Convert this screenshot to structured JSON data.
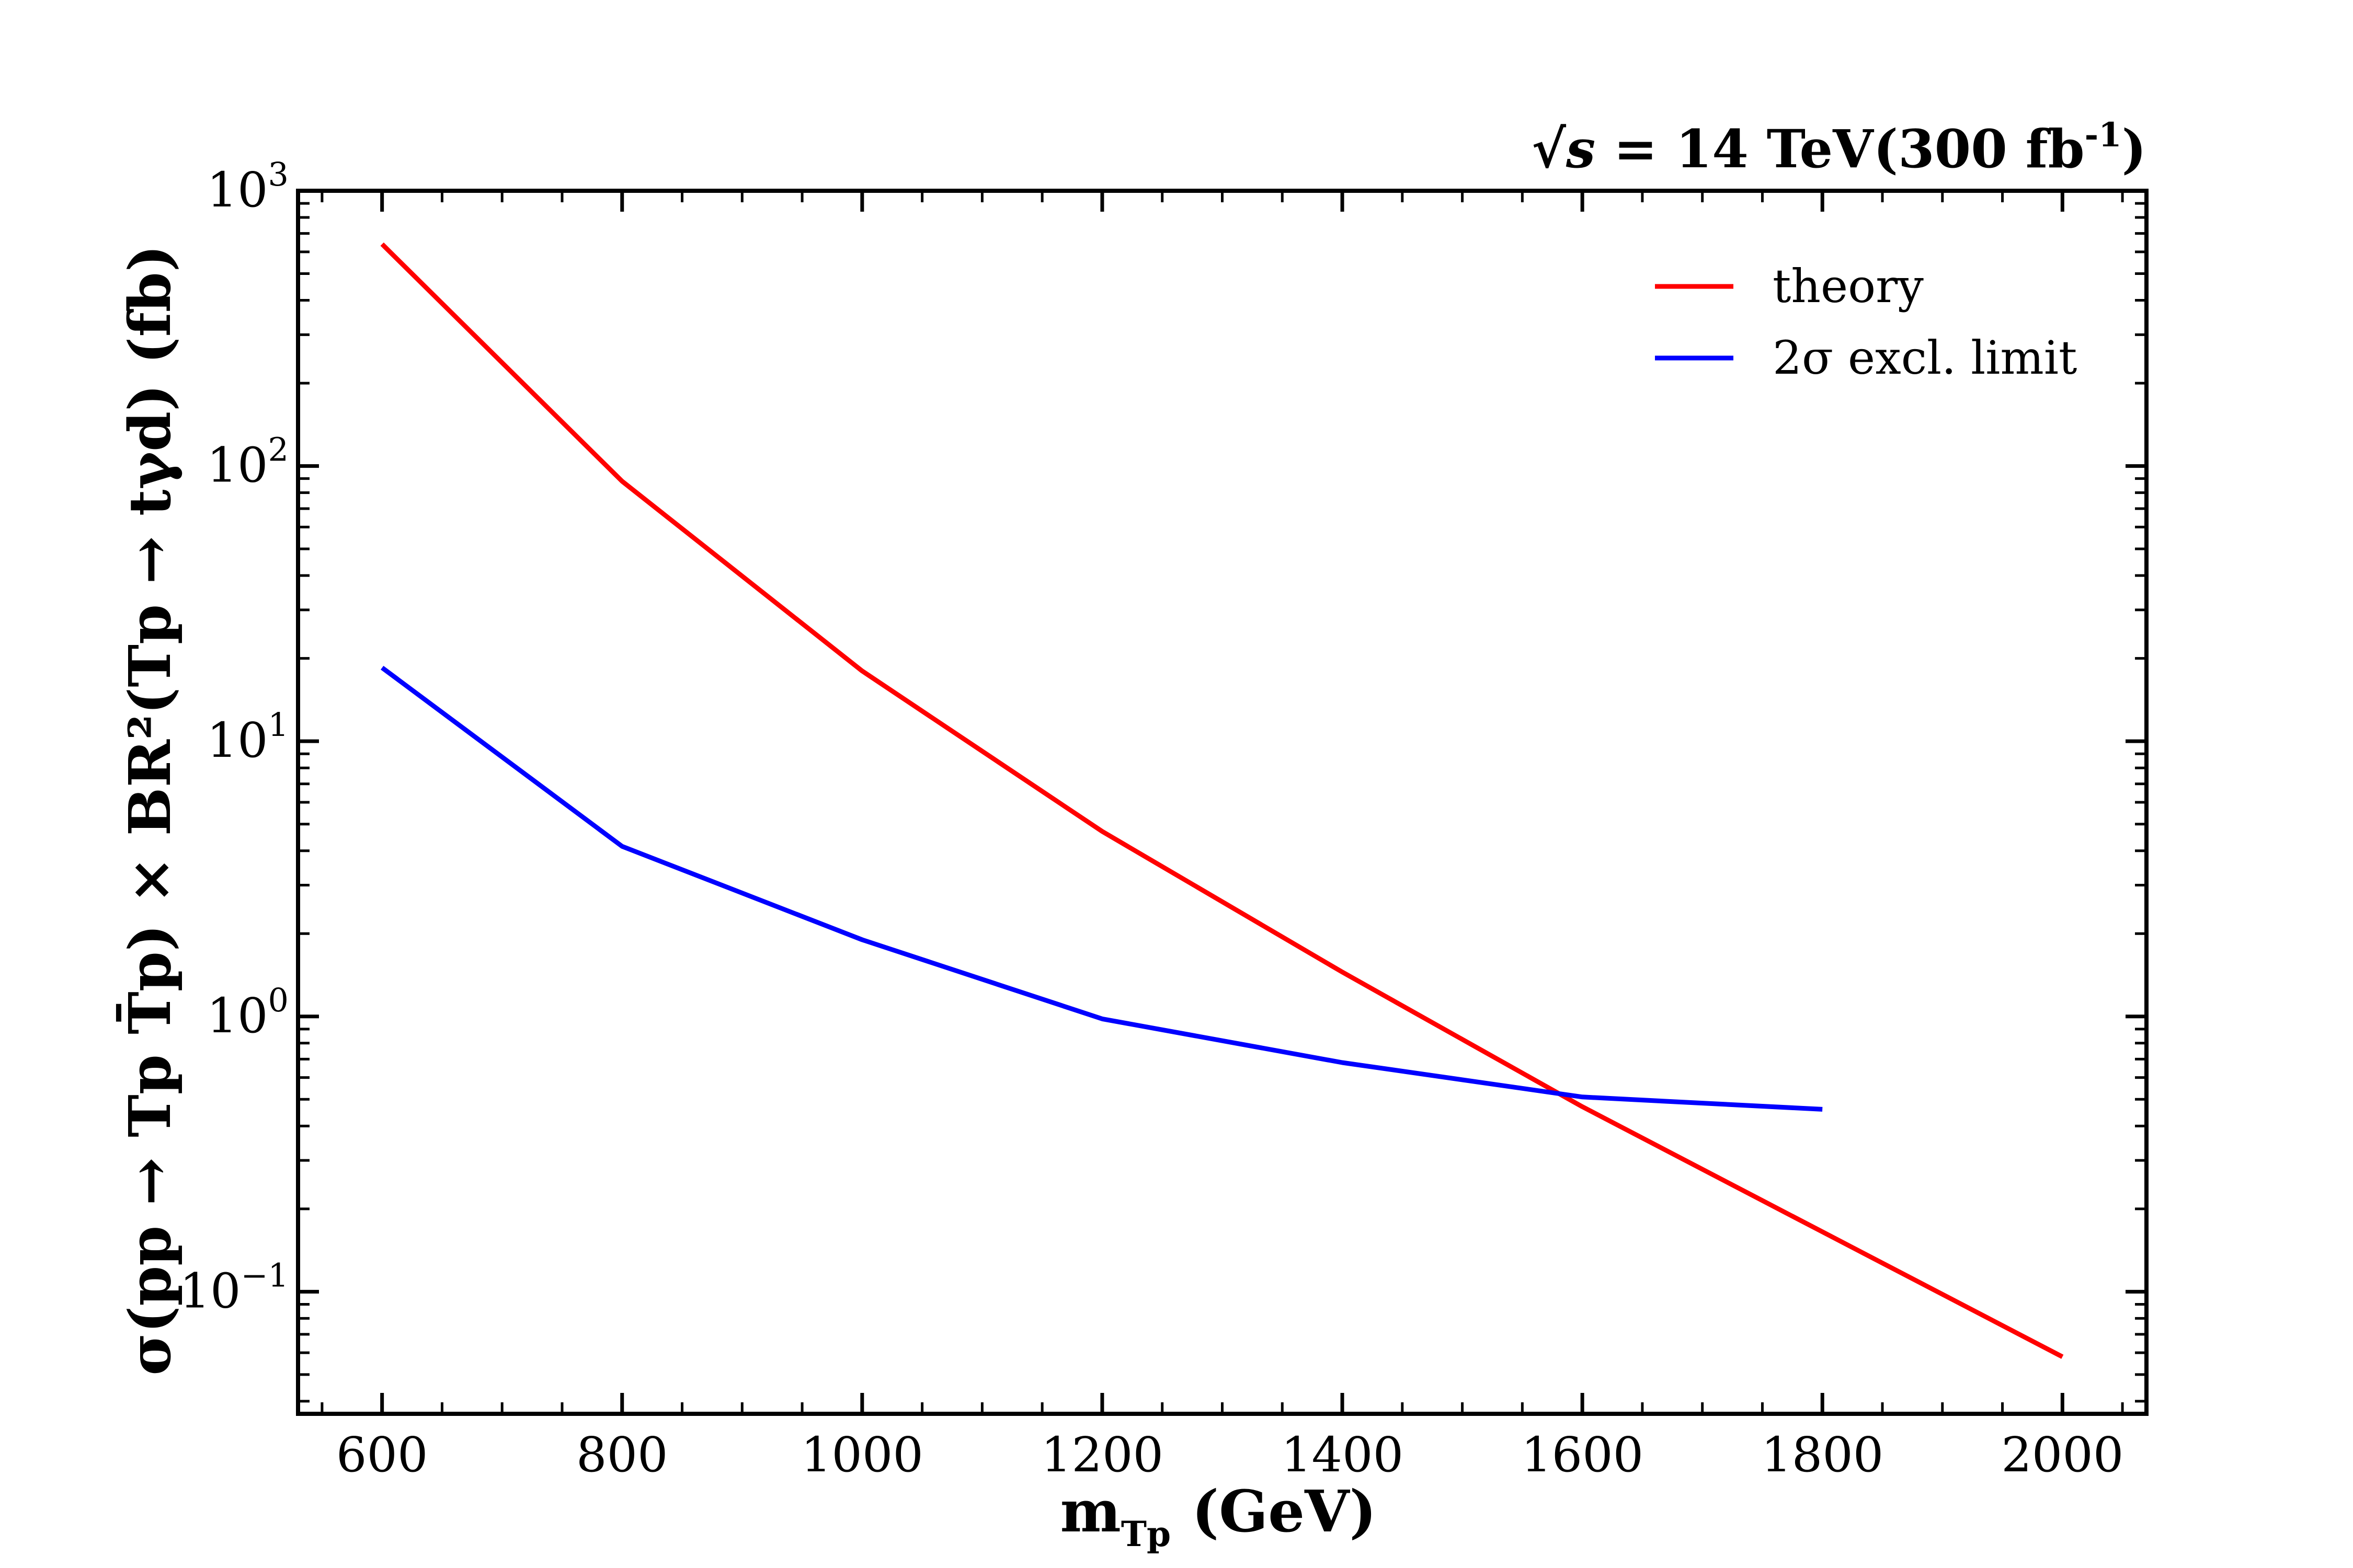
{
  "chart_data": {
    "type": "line",
    "title": "",
    "xlabel": "m",
    "xlabel_sub": "Tp",
    "xlabel_unit": "(GeV)",
    "ylabel": "σ(pp → Tp T̄p) × BR²(Tp → tγd) (fb)",
    "annotation": {
      "energy_lhs": "√s",
      "energy_text": " = 14 TeV(300 fb",
      "energy_sup": "-1",
      "energy_close": ")"
    },
    "xlim": [
      530,
      2070
    ],
    "ylim": [
      0.036,
      1000
    ],
    "yscale": "log",
    "x_ticks": [
      600,
      800,
      1000,
      1200,
      1400,
      1600,
      1800,
      2000
    ],
    "x_tick_labels": [
      "600",
      "800",
      "1000",
      "1200",
      "1400",
      "1600",
      "1800",
      "2000"
    ],
    "y_ticks": [
      {
        "value": 0.1,
        "base": "10",
        "exp": "−1"
      },
      {
        "value": 1,
        "base": "10",
        "exp": "0"
      },
      {
        "value": 10,
        "base": "10",
        "exp": "1"
      },
      {
        "value": 100,
        "base": "10",
        "exp": "2"
      },
      {
        "value": 1000,
        "base": "10",
        "exp": "3"
      }
    ],
    "grid": false,
    "legend_position": "top-right",
    "series": [
      {
        "name": "theory",
        "color": "#ff0000",
        "x": [
          600,
          800,
          1000,
          1200,
          1400,
          1600,
          1800,
          2000
        ],
        "y": [
          640,
          88,
          18,
          4.7,
          1.45,
          0.47,
          0.165,
          0.058
        ]
      },
      {
        "name": "2σ excl. limit",
        "color": "#0000ff",
        "x": [
          600,
          800,
          1000,
          1200,
          1400,
          1600,
          1800
        ],
        "y": [
          18.5,
          4.15,
          1.9,
          0.98,
          0.68,
          0.51,
          0.46
        ]
      }
    ]
  }
}
